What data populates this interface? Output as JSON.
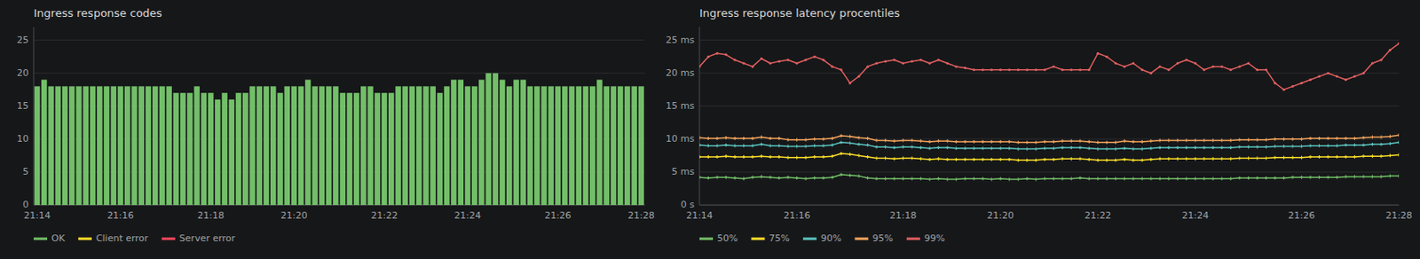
{
  "chart_data": [
    {
      "type": "bar",
      "title": "Ingress response codes",
      "categories": [
        "21:14",
        null,
        null,
        null,
        null,
        null,
        null,
        null,
        null,
        null,
        null,
        null,
        "21:16",
        null,
        null,
        null,
        null,
        null,
        null,
        null,
        null,
        null,
        null,
        null,
        null,
        "21:18",
        null,
        null,
        null,
        null,
        null,
        null,
        null,
        null,
        null,
        null,
        null,
        "21:20",
        null,
        null,
        null,
        null,
        null,
        null,
        null,
        null,
        null,
        null,
        null,
        null,
        "21:22",
        null,
        null,
        null,
        null,
        null,
        null,
        null,
        null,
        null,
        null,
        null,
        "21:24",
        null,
        null,
        null,
        null,
        null,
        null,
        null,
        null,
        null,
        null,
        null,
        null,
        "21:26",
        null,
        null,
        null,
        null,
        null,
        null,
        null,
        null,
        null,
        null,
        null,
        "21:28"
      ],
      "series": [
        {
          "name": "OK",
          "color": "#73bf69",
          "values": [
            18,
            19,
            18,
            18,
            18,
            18,
            18,
            18,
            18,
            18,
            18,
            18,
            18,
            18,
            18,
            18,
            18,
            18,
            18,
            18,
            17,
            17,
            17,
            18,
            17,
            17,
            16,
            17,
            16,
            17,
            17,
            18,
            18,
            18,
            18,
            17,
            18,
            18,
            18,
            19,
            18,
            18,
            18,
            18,
            17,
            17,
            17,
            18,
            18,
            17,
            17,
            17,
            18,
            18,
            18,
            18,
            18,
            18,
            17,
            18,
            19,
            19,
            18,
            18,
            19,
            20,
            20,
            19,
            18,
            19,
            19,
            18,
            18,
            18,
            18,
            18,
            18,
            18,
            18,
            18,
            18,
            19,
            18,
            18,
            18,
            18,
            18,
            18
          ]
        },
        {
          "name": "Client error",
          "color": "#fade2a",
          "values": [
            null,
            null,
            null,
            null,
            null,
            null,
            null,
            null,
            null,
            null,
            null,
            null,
            null,
            null,
            null,
            null,
            null,
            null,
            null,
            null,
            null,
            null,
            null,
            null,
            null,
            null,
            null,
            null,
            null,
            null,
            null,
            null,
            null,
            null,
            null,
            null,
            null,
            null,
            null,
            null,
            null,
            null,
            null,
            null,
            null,
            null,
            null,
            null,
            null,
            null,
            null,
            null,
            null,
            null,
            null,
            null,
            null,
            null,
            null,
            null,
            null,
            null,
            null,
            null,
            null,
            null,
            null,
            null,
            null,
            null,
            null,
            null,
            null,
            null,
            null,
            null,
            null,
            null,
            null,
            null,
            null,
            null,
            null,
            null,
            null,
            null,
            null,
            null
          ]
        },
        {
          "name": "Server error",
          "color": "#f2495c",
          "values": [
            null,
            null,
            null,
            null,
            null,
            null,
            null,
            null,
            null,
            null,
            null,
            null,
            null,
            null,
            null,
            null,
            null,
            null,
            null,
            null,
            null,
            null,
            null,
            null,
            null,
            null,
            null,
            null,
            null,
            null,
            null,
            null,
            null,
            null,
            null,
            null,
            null,
            null,
            null,
            null,
            null,
            null,
            null,
            null,
            null,
            null,
            null,
            null,
            null,
            null,
            null,
            null,
            null,
            null,
            null,
            null,
            null,
            null,
            null,
            null,
            null,
            null,
            null,
            null,
            null,
            null,
            null,
            null,
            null,
            null,
            null,
            null,
            null,
            null,
            null,
            null,
            null,
            null,
            null,
            null,
            null,
            null,
            null,
            null,
            null,
            null,
            null,
            null
          ]
        }
      ],
      "stacked": true,
      "ylim": [
        0,
        27
      ],
      "yticks": [
        0,
        5,
        10,
        15,
        20,
        25
      ],
      "grid": true,
      "legend": "bottom"
    },
    {
      "type": "line",
      "title": "Ingress response latency procentiles",
      "categories": [
        "21:14",
        null,
        null,
        null,
        null,
        null,
        null,
        null,
        null,
        null,
        null,
        "21:16",
        null,
        null,
        null,
        null,
        null,
        null,
        null,
        null,
        null,
        null,
        null,
        "21:18",
        null,
        null,
        null,
        null,
        null,
        null,
        null,
        null,
        null,
        null,
        "21:20",
        null,
        null,
        null,
        null,
        null,
        null,
        null,
        null,
        null,
        null,
        "21:22",
        null,
        null,
        null,
        null,
        null,
        null,
        null,
        null,
        null,
        null,
        "21:24",
        null,
        null,
        null,
        null,
        null,
        null,
        null,
        null,
        null,
        null,
        null,
        "21:26",
        null,
        null,
        null,
        null,
        null,
        null,
        null,
        null,
        null,
        null,
        "21:28"
      ],
      "series": [
        {
          "name": "50%",
          "color": "#73bf69",
          "marker": "plus",
          "values": [
            4.2,
            4.1,
            4.2,
            4.2,
            4.1,
            4.0,
            4.2,
            4.3,
            4.2,
            4.1,
            4.2,
            4.1,
            4.0,
            4.1,
            4.1,
            4.2,
            4.6,
            4.5,
            4.4,
            4.1,
            4.0,
            4.0,
            4.0,
            4.0,
            4.0,
            4.0,
            3.9,
            4.0,
            3.9,
            3.9,
            4.0,
            4.0,
            4.0,
            3.9,
            4.0,
            3.9,
            3.9,
            4.0,
            3.9,
            4.0,
            4.0,
            4.0,
            4.0,
            4.1,
            4.0,
            4.0,
            4.0,
            4.0,
            4.0,
            4.0,
            4.0,
            4.0,
            4.0,
            4.0,
            4.0,
            4.0,
            4.0,
            4.0,
            4.0,
            4.0,
            4.0,
            4.1,
            4.1,
            4.1,
            4.1,
            4.1,
            4.1,
            4.2,
            4.2,
            4.2,
            4.2,
            4.2,
            4.2,
            4.3,
            4.3,
            4.3,
            4.3,
            4.3,
            4.4,
            4.4
          ]
        },
        {
          "name": "75%",
          "color": "#fade2a",
          "marker": "plus",
          "values": [
            7.3,
            7.3,
            7.3,
            7.4,
            7.3,
            7.3,
            7.3,
            7.4,
            7.3,
            7.3,
            7.2,
            7.2,
            7.2,
            7.3,
            7.3,
            7.4,
            7.8,
            7.7,
            7.5,
            7.3,
            7.1,
            7.1,
            7.0,
            7.1,
            7.1,
            7.0,
            6.9,
            7.0,
            6.9,
            6.9,
            6.9,
            6.9,
            6.9,
            6.9,
            6.9,
            6.9,
            6.8,
            6.8,
            6.8,
            6.9,
            6.9,
            7.0,
            7.0,
            7.0,
            6.9,
            6.8,
            6.8,
            6.8,
            6.9,
            6.8,
            6.8,
            6.9,
            7.0,
            7.0,
            7.0,
            7.0,
            7.0,
            7.0,
            7.0,
            7.0,
            7.0,
            7.1,
            7.1,
            7.1,
            7.1,
            7.2,
            7.2,
            7.2,
            7.2,
            7.3,
            7.3,
            7.3,
            7.3,
            7.3,
            7.3,
            7.4,
            7.4,
            7.4,
            7.5,
            7.6
          ]
        },
        {
          "name": "90%",
          "color": "#5bc4bf",
          "marker": "plus",
          "values": [
            9.1,
            9.0,
            9.0,
            9.1,
            9.0,
            9.0,
            9.0,
            9.2,
            9.0,
            9.0,
            8.9,
            8.9,
            8.9,
            9.0,
            9.0,
            9.1,
            9.5,
            9.4,
            9.2,
            9.1,
            8.8,
            8.8,
            8.7,
            8.8,
            8.8,
            8.7,
            8.6,
            8.7,
            8.7,
            8.6,
            8.6,
            8.6,
            8.6,
            8.6,
            8.6,
            8.6,
            8.5,
            8.5,
            8.5,
            8.6,
            8.6,
            8.7,
            8.7,
            8.7,
            8.6,
            8.5,
            8.5,
            8.5,
            8.6,
            8.5,
            8.5,
            8.6,
            8.7,
            8.7,
            8.7,
            8.7,
            8.7,
            8.7,
            8.7,
            8.7,
            8.7,
            8.8,
            8.8,
            8.8,
            8.8,
            8.9,
            8.9,
            8.9,
            8.9,
            9.0,
            9.0,
            9.0,
            9.0,
            9.1,
            9.1,
            9.1,
            9.2,
            9.2,
            9.3,
            9.5
          ]
        },
        {
          "name": "95%",
          "color": "#f2a45c",
          "marker": "plus",
          "values": [
            10.2,
            10.1,
            10.1,
            10.2,
            10.1,
            10.1,
            10.1,
            10.3,
            10.1,
            10.1,
            9.9,
            9.9,
            9.9,
            10.0,
            10.0,
            10.1,
            10.5,
            10.4,
            10.2,
            10.1,
            9.8,
            9.8,
            9.7,
            9.8,
            9.8,
            9.7,
            9.6,
            9.7,
            9.7,
            9.6,
            9.6,
            9.6,
            9.6,
            9.6,
            9.6,
            9.6,
            9.5,
            9.5,
            9.5,
            9.6,
            9.6,
            9.7,
            9.7,
            9.7,
            9.6,
            9.5,
            9.5,
            9.5,
            9.7,
            9.6,
            9.6,
            9.7,
            9.8,
            9.8,
            9.8,
            9.8,
            9.8,
            9.8,
            9.8,
            9.8,
            9.8,
            9.9,
            9.9,
            9.9,
            9.9,
            10.0,
            10.0,
            10.0,
            10.0,
            10.1,
            10.1,
            10.1,
            10.1,
            10.1,
            10.1,
            10.2,
            10.3,
            10.3,
            10.4,
            10.6
          ]
        },
        {
          "name": "99%",
          "color": "#e05f5f",
          "marker": "point",
          "values": [
            21.0,
            22.5,
            23.0,
            22.8,
            22.0,
            21.5,
            21.0,
            22.2,
            21.5,
            21.8,
            22.0,
            21.5,
            22.0,
            22.5,
            22.0,
            21.0,
            20.5,
            18.5,
            19.5,
            21.0,
            21.5,
            21.8,
            22.0,
            21.5,
            21.8,
            22.0,
            21.5,
            22.0,
            21.5,
            21.0,
            20.8,
            20.5,
            20.5,
            20.5,
            20.5,
            20.5,
            20.5,
            20.5,
            20.5,
            20.5,
            21.0,
            20.5,
            20.5,
            20.5,
            20.5,
            23.0,
            22.5,
            21.5,
            21.0,
            21.5,
            20.5,
            20.0,
            21.0,
            20.5,
            21.5,
            22.0,
            21.5,
            20.5,
            21.0,
            21.0,
            20.5,
            21.0,
            21.5,
            20.5,
            20.5,
            18.5,
            17.5,
            18.0,
            18.5,
            19.0,
            19.5,
            20.0,
            19.5,
            19.0,
            19.5,
            20.0,
            21.5,
            22.0,
            23.5,
            24.5
          ]
        }
      ],
      "ylim": [
        0,
        27
      ],
      "yticks": [
        {
          "value": 0,
          "label": "0 s"
        },
        {
          "value": 5,
          "label": "5 ms"
        },
        {
          "value": 10,
          "label": "10 ms"
        },
        {
          "value": 15,
          "label": "15 ms"
        },
        {
          "value": 20,
          "label": "20 ms"
        },
        {
          "value": 25,
          "label": "25 ms"
        }
      ],
      "grid": true,
      "legend": "bottom"
    }
  ]
}
